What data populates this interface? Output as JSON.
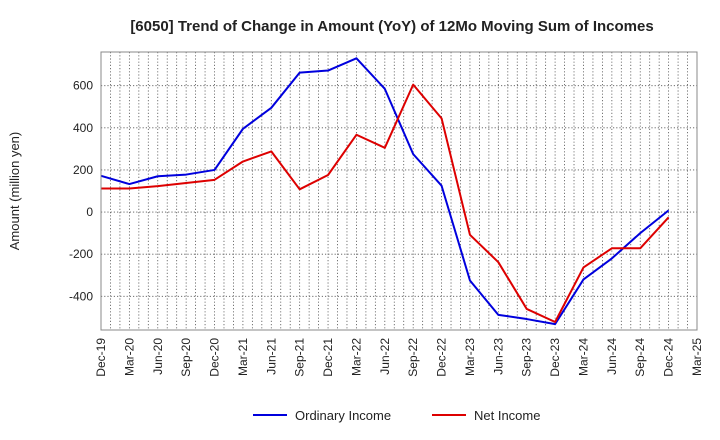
{
  "chart_data": {
    "type": "line",
    "title": "[6050]  Trend of Change in Amount (YoY) of 12Mo Moving Sum of Incomes",
    "xlabel": "",
    "ylabel": "Amount (million yen)",
    "categories": [
      "Dec-19",
      "Mar-20",
      "Jun-20",
      "Sep-20",
      "Dec-20",
      "Mar-21",
      "Jun-21",
      "Sep-21",
      "Dec-21",
      "Mar-22",
      "Jun-22",
      "Sep-22",
      "Dec-22",
      "Mar-23",
      "Jun-23",
      "Sep-23",
      "Dec-23",
      "Mar-24",
      "Jun-24",
      "Sep-24",
      "Dec-24",
      "Mar-25"
    ],
    "ylim": [
      -560,
      760
    ],
    "yticks": [
      -400,
      -200,
      0,
      200,
      400,
      600
    ],
    "grid": true,
    "legend_position": "bottom",
    "series": [
      {
        "name": "Ordinary Income",
        "color": "#0000dd",
        "values": [
          172,
          133,
          170,
          178,
          200,
          395,
          495,
          662,
          672,
          730,
          585,
          275,
          125,
          -325,
          -488,
          -508,
          -532,
          -320,
          -220,
          -100,
          8,
          null
        ]
      },
      {
        "name": "Net Income",
        "color": "#dd0000",
        "values": [
          112,
          112,
          123,
          138,
          153,
          240,
          288,
          108,
          176,
          367,
          305,
          605,
          445,
          -108,
          -238,
          -460,
          -522,
          -263,
          -172,
          -172,
          -25,
          null
        ]
      }
    ]
  }
}
